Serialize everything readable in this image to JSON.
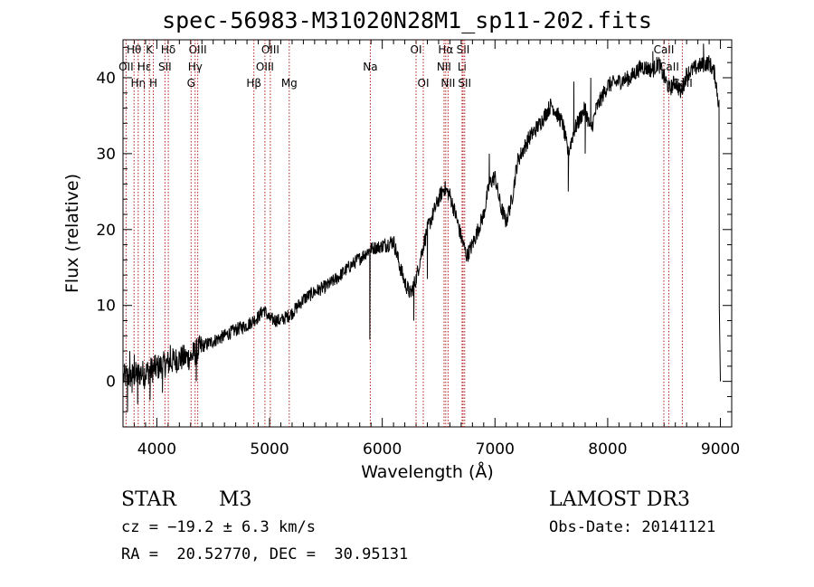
{
  "page": {
    "title": "spec-56983-M31020N28M1_sp11-202.fits",
    "object_class": "STAR",
    "subclass": "M3",
    "survey": "LAMOST DR3",
    "cz_label": "cz = −19.2 ± 6.3 km/s",
    "obs_date_label": "Obs-Date: 20141121",
    "radec_label": "RA =  20.52770, DEC =  30.95131"
  },
  "chart_data": {
    "type": "line",
    "title": "spec-56983-M31020N28M1_sp11-202.fits",
    "xlabel": "Wavelength (Å)",
    "ylabel": "Flux (relative)",
    "xlim": [
      3700,
      9100
    ],
    "ylim": [
      -6,
      45
    ],
    "xticks": [
      4000,
      5000,
      6000,
      7000,
      8000,
      9000
    ],
    "yticks": [
      0,
      10,
      20,
      30,
      40
    ],
    "x_minor_step": 100,
    "y_minor_step": 2,
    "series": [
      {
        "name": "spectrum",
        "color": "#000000",
        "points": [
          [
            3700,
            0.5
          ],
          [
            3800,
            0.8
          ],
          [
            3900,
            1.2
          ],
          [
            4000,
            1.8
          ],
          [
            4100,
            2.4
          ],
          [
            4200,
            3.0
          ],
          [
            4300,
            3.2
          ],
          [
            4400,
            4.6
          ],
          [
            4500,
            5.3
          ],
          [
            4600,
            6.0
          ],
          [
            4700,
            6.8
          ],
          [
            4800,
            7.4
          ],
          [
            4900,
            8.5
          ],
          [
            4950,
            9.5
          ],
          [
            5000,
            8.2
          ],
          [
            5100,
            8.0
          ],
          [
            5200,
            9.0
          ],
          [
            5300,
            10.8
          ],
          [
            5400,
            11.8
          ],
          [
            5500,
            12.5
          ],
          [
            5600,
            13.6
          ],
          [
            5700,
            15.0
          ],
          [
            5800,
            16.2
          ],
          [
            5900,
            17.5
          ],
          [
            6000,
            17.8
          ],
          [
            6100,
            18.5
          ],
          [
            6150,
            15.5
          ],
          [
            6200,
            13.0
          ],
          [
            6250,
            11.5
          ],
          [
            6300,
            13.5
          ],
          [
            6350,
            17.0
          ],
          [
            6400,
            20.0
          ],
          [
            6450,
            22.0
          ],
          [
            6500,
            24.0
          ],
          [
            6550,
            25.5
          ],
          [
            6600,
            24.5
          ],
          [
            6650,
            22.0
          ],
          [
            6700,
            19.0
          ],
          [
            6750,
            16.5
          ],
          [
            6800,
            18.0
          ],
          [
            6850,
            20.0
          ],
          [
            6900,
            22.0
          ],
          [
            6950,
            26.0
          ],
          [
            7000,
            27.0
          ],
          [
            7050,
            23.0
          ],
          [
            7100,
            21.0
          ],
          [
            7150,
            24.0
          ],
          [
            7200,
            29.0
          ],
          [
            7300,
            32.0
          ],
          [
            7400,
            34.0
          ],
          [
            7500,
            36.5
          ],
          [
            7600,
            34.0
          ],
          [
            7650,
            30.0
          ],
          [
            7700,
            33.0
          ],
          [
            7800,
            36.0
          ],
          [
            7850,
            33.0
          ],
          [
            7900,
            36.0
          ],
          [
            8000,
            39.0
          ],
          [
            8100,
            39.5
          ],
          [
            8200,
            40.0
          ],
          [
            8300,
            41.5
          ],
          [
            8400,
            41.0
          ],
          [
            8450,
            42.0
          ],
          [
            8500,
            40.0
          ],
          [
            8550,
            38.5
          ],
          [
            8600,
            39.5
          ],
          [
            8650,
            38.0
          ],
          [
            8700,
            40.5
          ],
          [
            8800,
            41.5
          ],
          [
            8900,
            42.0
          ],
          [
            8950,
            40.5
          ],
          [
            8990,
            36.0
          ]
        ],
        "spikes": [
          [
            3720,
            1.3
          ],
          [
            3740,
            -4.0
          ],
          [
            3760,
            4.0
          ],
          [
            3780,
            -1.5
          ],
          [
            3800,
            3.5
          ],
          [
            3830,
            -3.0
          ],
          [
            3860,
            2.0
          ],
          [
            3890,
            -1.0
          ],
          [
            3940,
            -2.5
          ],
          [
            3980,
            3.4
          ],
          [
            4050,
            -1.5
          ],
          [
            4120,
            4.8
          ],
          [
            4350,
            0.0
          ],
          [
            4380,
            5.2
          ],
          [
            5890,
            5.5
          ],
          [
            6280,
            8.0
          ],
          [
            6400,
            13.5
          ],
          [
            6950,
            30.0
          ],
          [
            7650,
            25.0
          ],
          [
            7700,
            39.5
          ],
          [
            7800,
            30.0
          ],
          [
            7850,
            40.0
          ],
          [
            8400,
            43.5
          ],
          [
            8850,
            44.5
          ],
          [
            8990,
            10.0
          ],
          [
            9000,
            0.0
          ]
        ]
      }
    ],
    "line_markers": [
      {
        "label": "Hθ",
        "x": 3798,
        "row": 0
      },
      {
        "label": "OII",
        "x": 3727,
        "row": 1
      },
      {
        "label": "Hη",
        "x": 3835,
        "row": 2
      },
      {
        "label": "K",
        "x": 3934,
        "row": 0
      },
      {
        "label": "H",
        "x": 3969,
        "row": 2
      },
      {
        "label": "Hε",
        "x": 3889,
        "row": 1
      },
      {
        "label": "SII",
        "x": 4072,
        "row": 1
      },
      {
        "label": "Hδ",
        "x": 4102,
        "row": 0
      },
      {
        "label": "OIII",
        "x": 4363,
        "row": 0
      },
      {
        "label": "Hγ",
        "x": 4340,
        "row": 1
      },
      {
        "label": "G",
        "x": 4304,
        "row": 2
      },
      {
        "label": "Hβ",
        "x": 4861,
        "row": 2
      },
      {
        "label": "OIII",
        "x": 5007,
        "row": 0
      },
      {
        "label": "OIII",
        "x": 4959,
        "row": 1
      },
      {
        "label": "Mg",
        "x": 5175,
        "row": 2
      },
      {
        "label": "Na",
        "x": 5894,
        "row": 1
      },
      {
        "label": "OI",
        "x": 6300,
        "row": 0
      },
      {
        "label": "OI",
        "x": 6364,
        "row": 2
      },
      {
        "label": "Hα",
        "x": 6563,
        "row": 0
      },
      {
        "label": "NII",
        "x": 6548,
        "row": 1
      },
      {
        "label": "NII",
        "x": 6584,
        "row": 2
      },
      {
        "label": "SII",
        "x": 6717,
        "row": 0
      },
      {
        "label": "Li",
        "x": 6708,
        "row": 1
      },
      {
        "label": "SII",
        "x": 6731,
        "row": 2
      },
      {
        "label": "CaII",
        "x": 8498,
        "row": 0
      },
      {
        "label": "CaII",
        "x": 8542,
        "row": 1
      },
      {
        "label": "CaII",
        "x": 8662,
        "row": 2
      }
    ]
  }
}
